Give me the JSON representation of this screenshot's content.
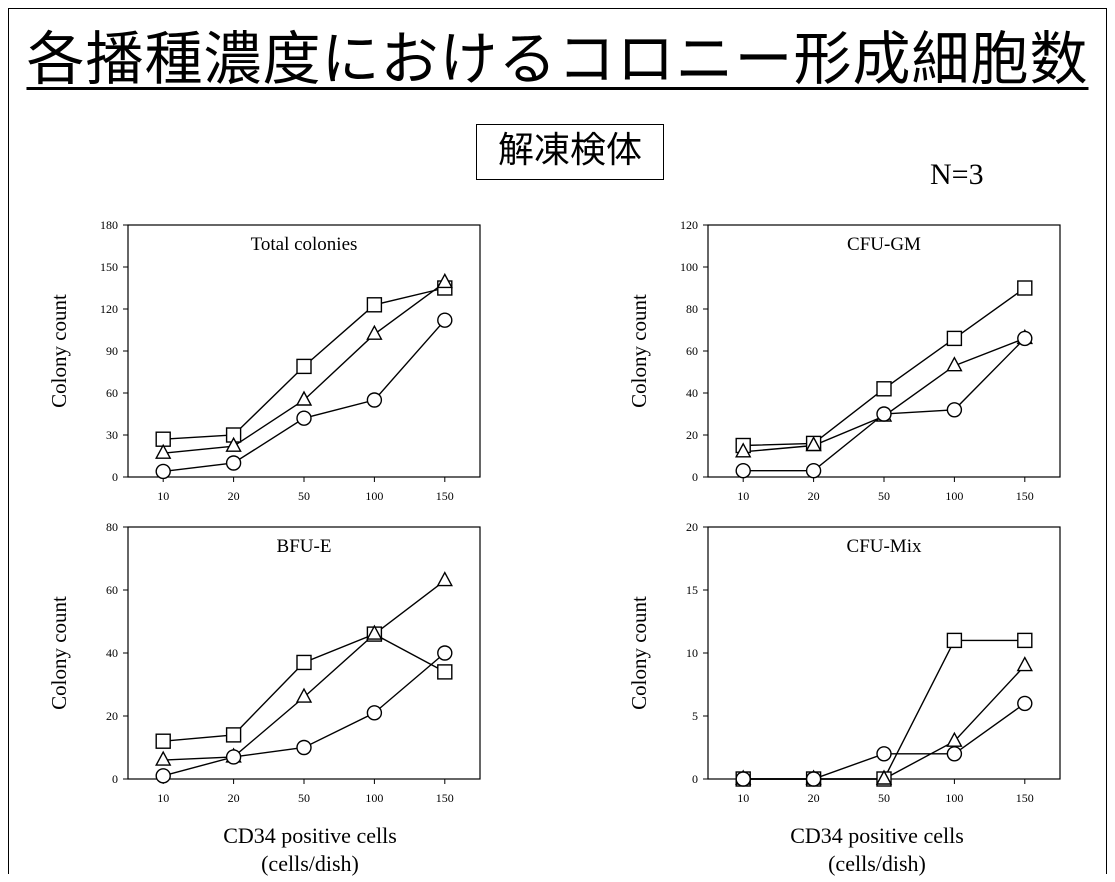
{
  "title": "各播種濃度におけるコロニー形成細胞数",
  "subtitle": "解凍検体",
  "n_label": "N=3",
  "x_caption": {
    "line1": "CD34 positive cells",
    "line2": "(cells/dish)"
  },
  "chart_data": [
    {
      "type": "line",
      "title": "Total colonies",
      "ylabel": "Colony count",
      "categories": [
        "10",
        "20",
        "50",
        "100",
        "150"
      ],
      "ylim": [
        0,
        180
      ],
      "yticks": [
        0,
        30,
        60,
        90,
        120,
        150,
        180
      ],
      "series": [
        {
          "marker": "square",
          "values": [
            27,
            30,
            79,
            123,
            135
          ]
        },
        {
          "marker": "triangle",
          "values": [
            17,
            22,
            55,
            102,
            139
          ]
        },
        {
          "marker": "circle",
          "values": [
            4,
            10,
            42,
            55,
            112
          ]
        }
      ]
    },
    {
      "type": "line",
      "title": "CFU-GM",
      "ylabel": "Colony count",
      "categories": [
        "10",
        "20",
        "50",
        "100",
        "150"
      ],
      "ylim": [
        0,
        120
      ],
      "yticks": [
        0,
        20,
        40,
        60,
        80,
        100,
        120
      ],
      "series": [
        {
          "marker": "square",
          "values": [
            15,
            16,
            42,
            66,
            90
          ]
        },
        {
          "marker": "triangle",
          "values": [
            12,
            15,
            29,
            53,
            66
          ]
        },
        {
          "marker": "circle",
          "values": [
            3,
            3,
            30,
            32,
            66
          ]
        }
      ]
    },
    {
      "type": "line",
      "title": "BFU-E",
      "ylabel": "Colony count",
      "categories": [
        "10",
        "20",
        "50",
        "100",
        "150"
      ],
      "ylim": [
        0,
        80
      ],
      "yticks": [
        0,
        20,
        40,
        60,
        80
      ],
      "series": [
        {
          "marker": "square",
          "values": [
            12,
            14,
            37,
            46,
            34
          ]
        },
        {
          "marker": "triangle",
          "values": [
            6,
            7,
            26,
            46,
            63
          ]
        },
        {
          "marker": "circle",
          "values": [
            1,
            7,
            10,
            21,
            40
          ]
        }
      ]
    },
    {
      "type": "line",
      "title": "CFU-Mix",
      "ylabel": "Colony count",
      "categories": [
        "10",
        "20",
        "50",
        "100",
        "150"
      ],
      "ylim": [
        0,
        20
      ],
      "yticks": [
        0,
        5,
        10,
        15,
        20
      ],
      "series": [
        {
          "marker": "square",
          "values": [
            0,
            0,
            0,
            11,
            11
          ]
        },
        {
          "marker": "triangle",
          "values": [
            0,
            0,
            0,
            3,
            9
          ]
        },
        {
          "marker": "circle",
          "values": [
            0,
            0,
            2,
            2,
            6
          ]
        }
      ]
    }
  ]
}
